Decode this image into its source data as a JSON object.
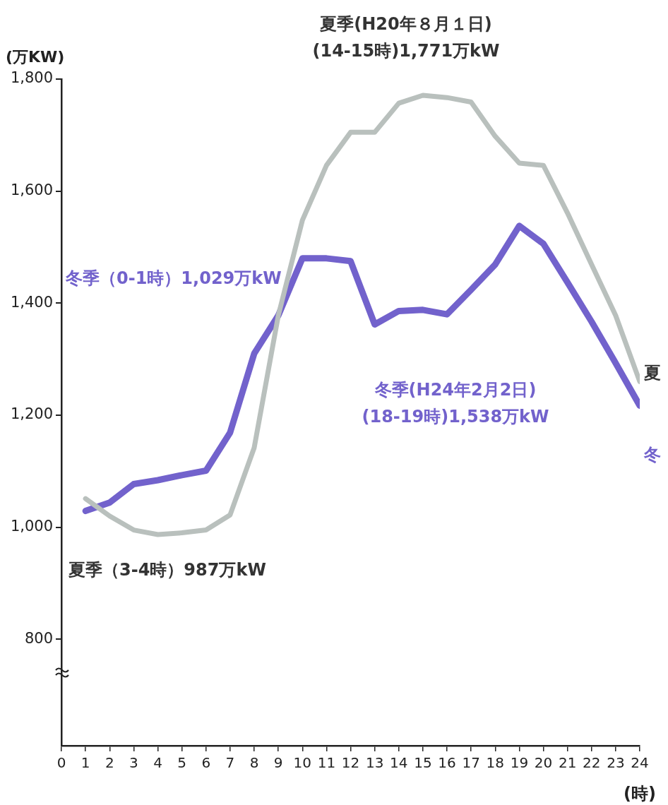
{
  "chart_data": {
    "type": "line",
    "ylabel": "(万KW)",
    "xlabel": "(時)",
    "x": [
      1,
      2,
      3,
      4,
      5,
      6,
      7,
      8,
      9,
      10,
      11,
      12,
      13,
      14,
      15,
      16,
      17,
      18,
      19,
      20,
      21,
      22,
      23,
      24
    ],
    "series": [
      {
        "name": "夏",
        "color": "#b9c0bd",
        "values": [
          1051,
          1020,
          995,
          987,
          990,
          995,
          1022,
          1142,
          1378,
          1548,
          1646,
          1705,
          1705,
          1757,
          1771,
          1767,
          1759,
          1698,
          1650,
          1646,
          1561,
          1469,
          1378,
          1260
        ]
      },
      {
        "name": "冬",
        "color": "#7262cc",
        "values": [
          1029,
          1044,
          1077,
          1084,
          1093,
          1101,
          1169,
          1310,
          1378,
          1480,
          1480,
          1475,
          1362,
          1386,
          1388,
          1380,
          1424,
          1469,
          1538,
          1506,
          1437,
          1367,
          1293,
          1217
        ]
      }
    ],
    "xlim": [
      0,
      24
    ],
    "xticks": [
      0,
      1,
      2,
      3,
      4,
      5,
      6,
      7,
      8,
      9,
      10,
      11,
      12,
      13,
      14,
      15,
      16,
      17,
      18,
      19,
      20,
      21,
      22,
      23,
      24
    ],
    "ylim": [
      610,
      1800
    ],
    "yticks": [
      800,
      {
        "value": 1000,
        "label": "1,000"
      },
      {
        "value": 1200,
        "label": "1,200"
      },
      {
        "value": 1400,
        "label": "1,400"
      },
      {
        "value": 1600,
        "label": "1,600"
      },
      {
        "value": 1800,
        "label": "1,800"
      }
    ],
    "grid": false,
    "legend": false,
    "marker": "none",
    "line_style": "solid",
    "annotations": [
      "夏季(H20年８月１日)\n(14-15時)1,771万kW",
      "冬季（0-1時）1,029万kW",
      "夏季（3-4時）987万kW",
      "冬季(H24年2月2日)\n(18-19時)1,538万kW"
    ]
  }
}
